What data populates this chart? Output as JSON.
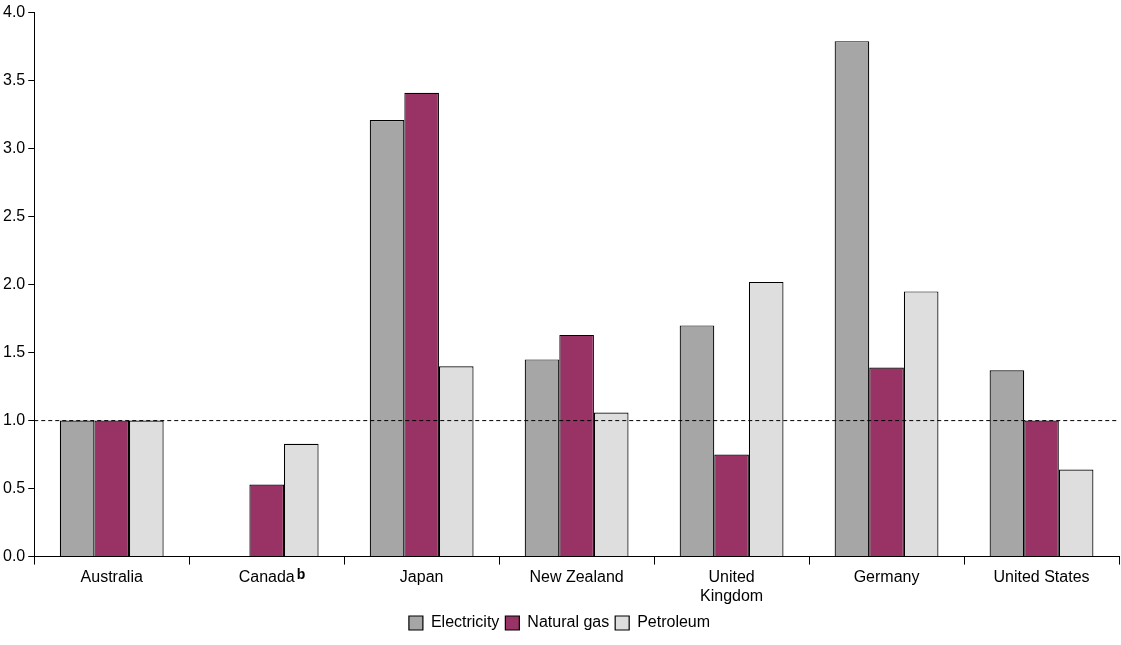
{
  "chart_data": {
    "type": "bar",
    "categories": [
      "Australia",
      "Canada",
      "Japan",
      "New Zealand",
      "United Kingdom",
      "Germany",
      "United States"
    ],
    "series": [
      {
        "name": "Electricity",
        "color": "#a6a6a6",
        "values": [
          1.0,
          null,
          3.21,
          1.45,
          1.7,
          3.79,
          1.37
        ]
      },
      {
        "name": "Natural gas",
        "color": "#993366",
        "values": [
          1.0,
          0.53,
          3.41,
          1.63,
          0.75,
          1.39,
          1.0
        ]
      },
      {
        "name": "Petroleum",
        "color": "#dedede",
        "values": [
          1.0,
          0.83,
          1.4,
          1.06,
          2.02,
          1.95,
          0.64
        ]
      }
    ],
    "ylim": [
      0,
      4
    ],
    "yticks": [
      {
        "value": 0,
        "label": "0.0"
      },
      {
        "value": 0.5,
        "label": "0.5"
      },
      {
        "value": 1,
        "label": "1.0"
      },
      {
        "value": 1.5,
        "label": "1.5"
      },
      {
        "value": 2,
        "label": "2.0"
      },
      {
        "value": 2.5,
        "label": "2.5"
      },
      {
        "value": 3,
        "label": "3.0"
      },
      {
        "value": 3.5,
        "label": "3.5"
      },
      {
        "value": 4,
        "label": "4.0"
      }
    ],
    "ref_lines": [
      {
        "axis": "y",
        "value": 1,
        "line_style": "dashed",
        "color": "#000000"
      }
    ],
    "annotations": [
      "b"
    ],
    "grid": false,
    "legend": "bottom"
  }
}
